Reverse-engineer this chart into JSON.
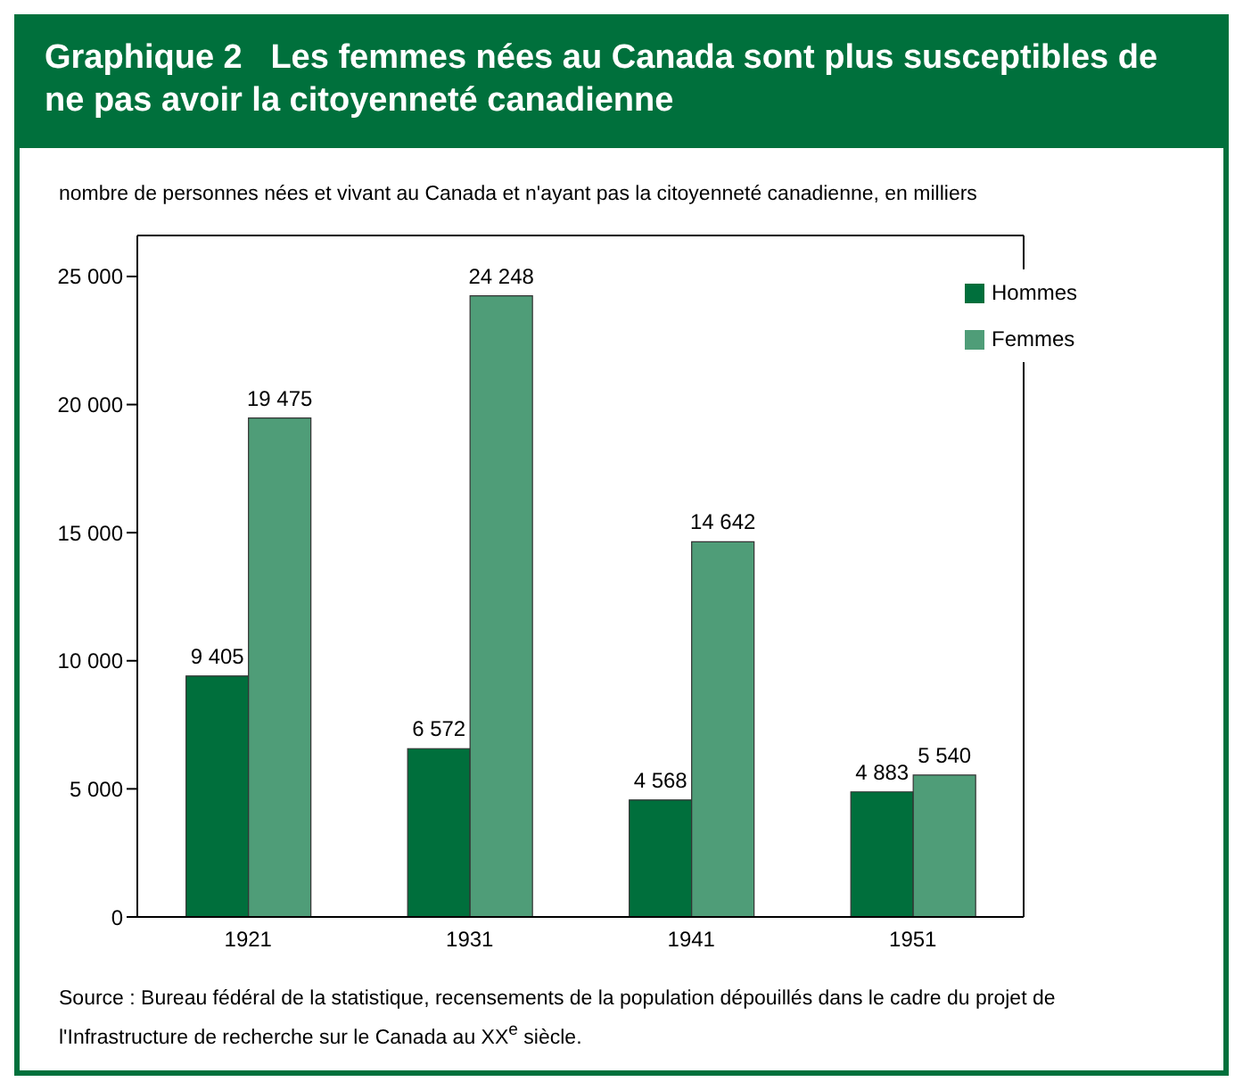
{
  "chart_data": {
    "type": "bar",
    "title": "Graphique 2   Les femmes nées au Canada sont plus susceptibles de ne pas avoir la citoyenneté canadienne",
    "subtitle": "nombre de personnes nées et vivant au Canada et n'ayant pas la citoyenneté canadienne, en milliers",
    "categories": [
      "1921",
      "1931",
      "1941",
      "1951"
    ],
    "series": [
      {
        "name": "Hommes",
        "color": "#006f3c",
        "values": [
          9405,
          6572,
          4568,
          4883
        ],
        "value_labels": [
          "9 405",
          "6 572",
          "4 568",
          "4 883"
        ]
      },
      {
        "name": "Femmes",
        "color": "#4f9d78",
        "values": [
          19475,
          24248,
          14642,
          5540
        ],
        "value_labels": [
          "19 475",
          "24 248",
          "14 642",
          "5 540"
        ]
      }
    ],
    "ylim": [
      0,
      26600
    ],
    "yticks": [
      {
        "value": 0,
        "label": "0"
      },
      {
        "value": 5000,
        "label": "5 000"
      },
      {
        "value": 10000,
        "label": "10 000"
      },
      {
        "value": 15000,
        "label": "15 000"
      },
      {
        "value": 20000,
        "label": "20 000"
      },
      {
        "value": 25000,
        "label": "25 000"
      }
    ],
    "grid": false,
    "legend": "top right",
    "annotations": [
      "Source : Bureau fédéral de la statistique, recensements de la population dépouillés dans le cadre du projet de l'Infrastructure de recherche sur le Canada au XX$^{e}$ siècle."
    ]
  }
}
